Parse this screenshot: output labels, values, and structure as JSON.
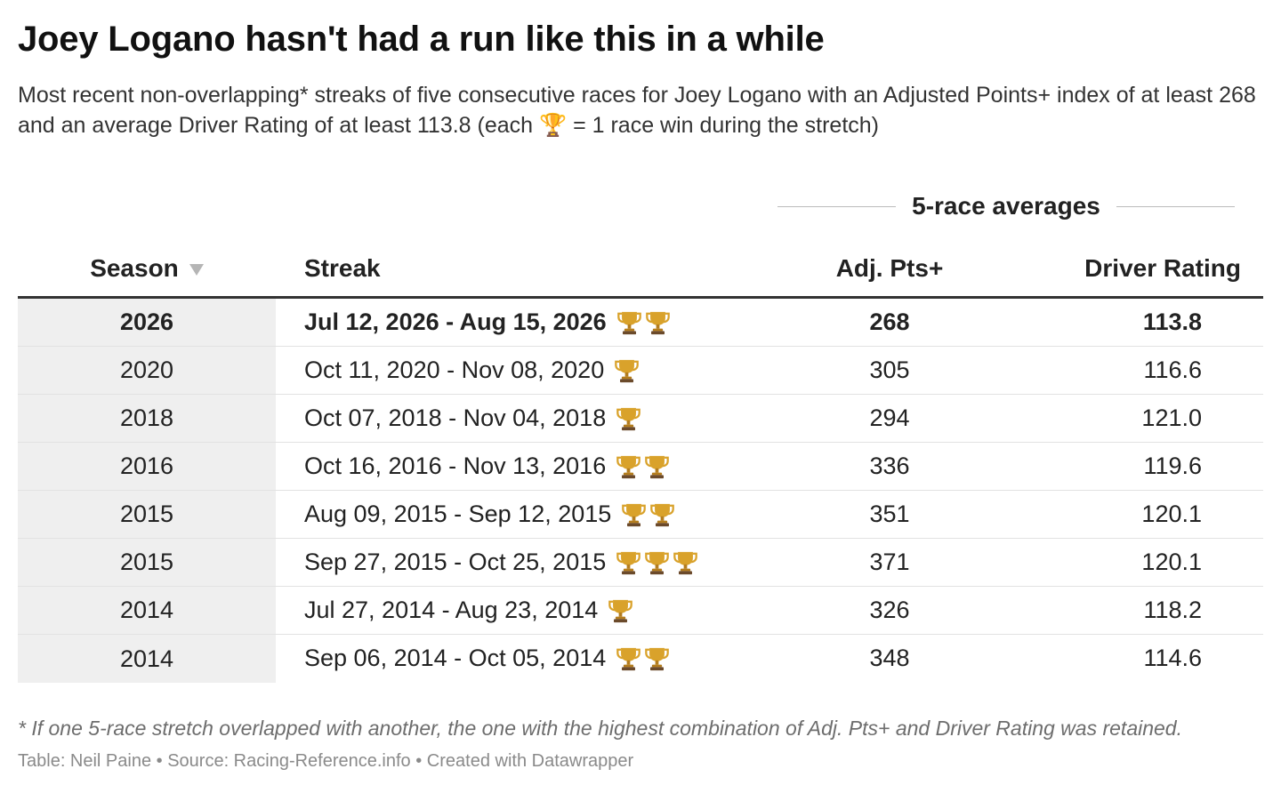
{
  "title": "Joey Logano hasn't had a run like this in a while",
  "subtitle": "Most recent non-overlapping* streaks of five consecutive races for Joey Logano with an Adjusted Points+ index of at least 268 and an average Driver Rating of at least 113.8 (each 🏆 = 1 race win during the stretch)",
  "group_header": "5-race averages",
  "colors": {
    "header_rule": "#333333",
    "season_column_bg": "#efefef",
    "trophy": "#d9a22b"
  },
  "chart_data": {
    "type": "table",
    "columns": [
      "Season",
      "Streak",
      "Adj. Pts+",
      "Driver Rating"
    ],
    "sort": {
      "column": "Season",
      "direction": "descending",
      "icon": "sort-down-icon"
    },
    "rows": [
      {
        "season": "2026",
        "streak": "Jul 12, 2026 - Aug 15, 2026",
        "wins": 2,
        "adj_pts": "268",
        "driver_rating": "113.8",
        "highlight": true
      },
      {
        "season": "2020",
        "streak": "Oct 11, 2020 - Nov 08, 2020",
        "wins": 1,
        "adj_pts": "305",
        "driver_rating": "116.6"
      },
      {
        "season": "2018",
        "streak": "Oct 07, 2018 - Nov 04, 2018",
        "wins": 1,
        "adj_pts": "294",
        "driver_rating": "121.0"
      },
      {
        "season": "2016",
        "streak": "Oct 16, 2016 - Nov 13, 2016",
        "wins": 2,
        "adj_pts": "336",
        "driver_rating": "119.6"
      },
      {
        "season": "2015",
        "streak": "Aug 09, 2015 - Sep 12, 2015",
        "wins": 2,
        "adj_pts": "351",
        "driver_rating": "120.1"
      },
      {
        "season": "2015",
        "streak": "Sep 27, 2015 - Oct 25, 2015",
        "wins": 3,
        "adj_pts": "371",
        "driver_rating": "120.1"
      },
      {
        "season": "2014",
        "streak": "Jul 27, 2014 - Aug 23, 2014",
        "wins": 1,
        "adj_pts": "326",
        "driver_rating": "118.2"
      },
      {
        "season": "2014",
        "streak": "Sep 06, 2014 - Oct 05, 2014",
        "wins": 2,
        "adj_pts": "348",
        "driver_rating": "114.6"
      }
    ]
  },
  "footnote": "* If one 5-race stretch overlapped with another, the one with the highest combination of Adj. Pts+ and Driver Rating was retained.",
  "credits": "Table: Neil Paine • Source: Racing-Reference.info • Created with Datawrapper"
}
